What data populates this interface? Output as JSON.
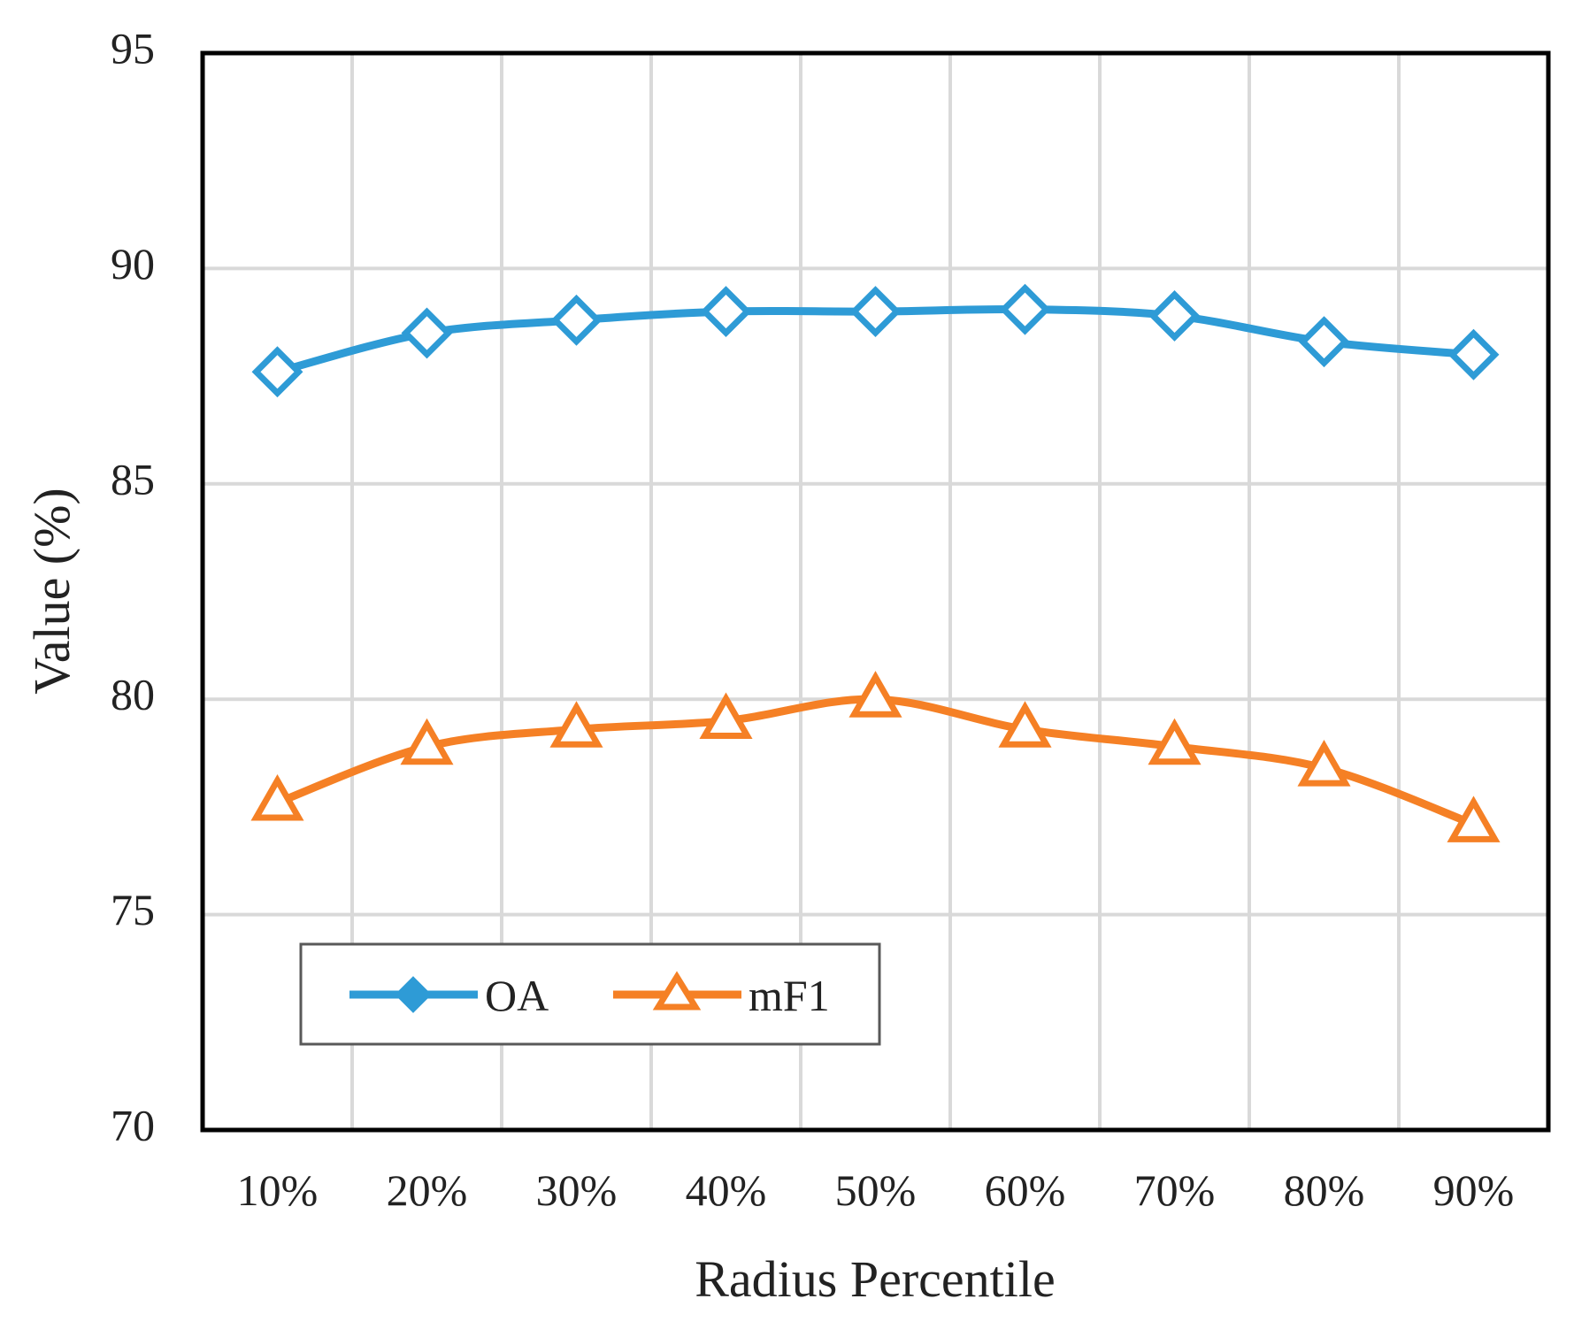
{
  "chart_data": {
    "type": "line",
    "title": "",
    "xlabel": "Radius Percentile",
    "ylabel": "Value (%)",
    "categories": [
      "10%",
      "20%",
      "30%",
      "40%",
      "50%",
      "60%",
      "70%",
      "80%",
      "90%"
    ],
    "ylim": [
      70,
      95
    ],
    "yticks": [
      "70",
      "75",
      "80",
      "85",
      "90",
      "95"
    ],
    "grid": true,
    "legend": "inside bottom-left",
    "series": [
      {
        "name": "OA",
        "marker": "diamond",
        "color": "#2e9bd6",
        "values": [
          87.6,
          88.5,
          88.8,
          89.0,
          89.0,
          89.05,
          88.9,
          88.3,
          88.0
        ]
      },
      {
        "name": "mF1",
        "marker": "triangle",
        "color": "#f58025",
        "values": [
          77.6,
          78.9,
          79.3,
          79.5,
          80.0,
          79.3,
          78.9,
          78.4,
          77.1
        ]
      }
    ]
  }
}
